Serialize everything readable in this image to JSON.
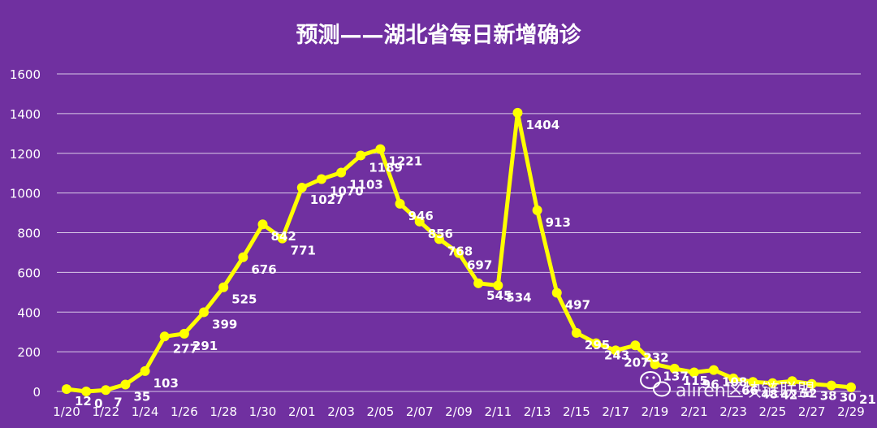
{
  "chart_data": {
    "type": "line",
    "title": "预测——湖北省每日新增确诊",
    "xlabel": "",
    "ylabel": "",
    "ylim": [
      0,
      1600
    ],
    "yticks": [
      0,
      200,
      400,
      600,
      800,
      1000,
      1200,
      1400,
      1600
    ],
    "grid": true,
    "legend": "none",
    "x": [
      "1/20",
      "1/21",
      "1/22",
      "1/23",
      "1/24",
      "1/25",
      "1/26",
      "1/27",
      "1/28",
      "1/29",
      "1/30",
      "1/31",
      "2/01",
      "2/02",
      "2/03",
      "2/04",
      "2/05",
      "2/06",
      "2/07",
      "2/08",
      "2/09",
      "2/10",
      "2/11",
      "2/12",
      "2/13",
      "2/14",
      "2/15",
      "2/16",
      "2/17",
      "2/18",
      "2/19",
      "2/20",
      "2/21",
      "2/22",
      "2/23",
      "2/24",
      "2/25",
      "2/26",
      "2/27",
      "2/28",
      "2/29"
    ],
    "x_tick_labels": [
      "1/20",
      "1/22",
      "1/24",
      "1/26",
      "1/28",
      "1/30",
      "2/01",
      "2/03",
      "2/05",
      "2/07",
      "2/09",
      "2/11",
      "2/13",
      "2/15",
      "2/17",
      "2/19",
      "2/21",
      "2/23",
      "2/25",
      "2/27",
      "2/29"
    ],
    "values": [
      12,
      0,
      7,
      35,
      103,
      277,
      291,
      399,
      525,
      676,
      842,
      771,
      1027,
      1070,
      1103,
      1189,
      1221,
      946,
      856,
      768,
      697,
      545,
      534,
      1404,
      913,
      497,
      295,
      243,
      207,
      232,
      137,
      115,
      96,
      108,
      66,
      48,
      42,
      52,
      38,
      30,
      21
    ],
    "labels": [
      "12",
      "0",
      "7",
      "35",
      "103",
      "277",
      "291",
      "399",
      "525",
      "676",
      "842",
      "771",
      "1027",
      "1070",
      "1103",
      "1189",
      "1221",
      "946",
      "856",
      "768",
      "697",
      "545",
      "534",
      "1404",
      "913",
      "497",
      "295",
      "243",
      "207",
      "232",
      "137",
      "115",
      "96",
      "108",
      "66",
      "48",
      "42",
      "52",
      "38",
      "30",
      "21"
    ],
    "line_color": "#FFFF00",
    "background_color": "#7030A0"
  },
  "watermark": {
    "icon": "wechat-icon",
    "text": "aliren区块链联盟"
  }
}
